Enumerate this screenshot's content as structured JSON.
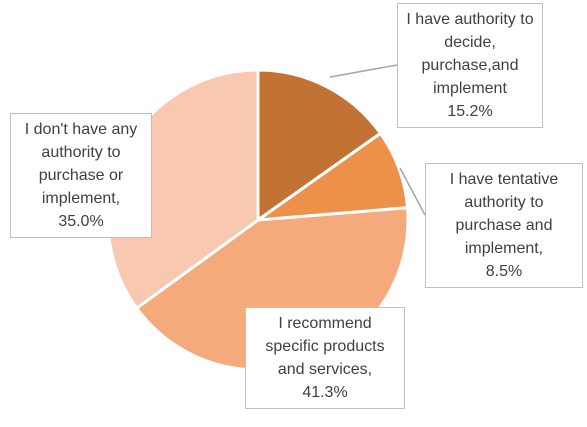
{
  "chart_data": {
    "type": "pie",
    "categories": [
      "I have authority to decide, purchase,and implement",
      "I have tentative authority to purchase and implement,",
      "I recommend specific products and services,",
      "I don't have any authority to purchase or implement,"
    ],
    "values": [
      15.2,
      8.5,
      41.3,
      35.0
    ],
    "value_labels": [
      "15.2%",
      "8.5%",
      "41.3%",
      "35.0%"
    ],
    "colors": [
      "#c27334",
      "#ed914a",
      "#f5aa7b",
      "#f8c8b1"
    ]
  }
}
